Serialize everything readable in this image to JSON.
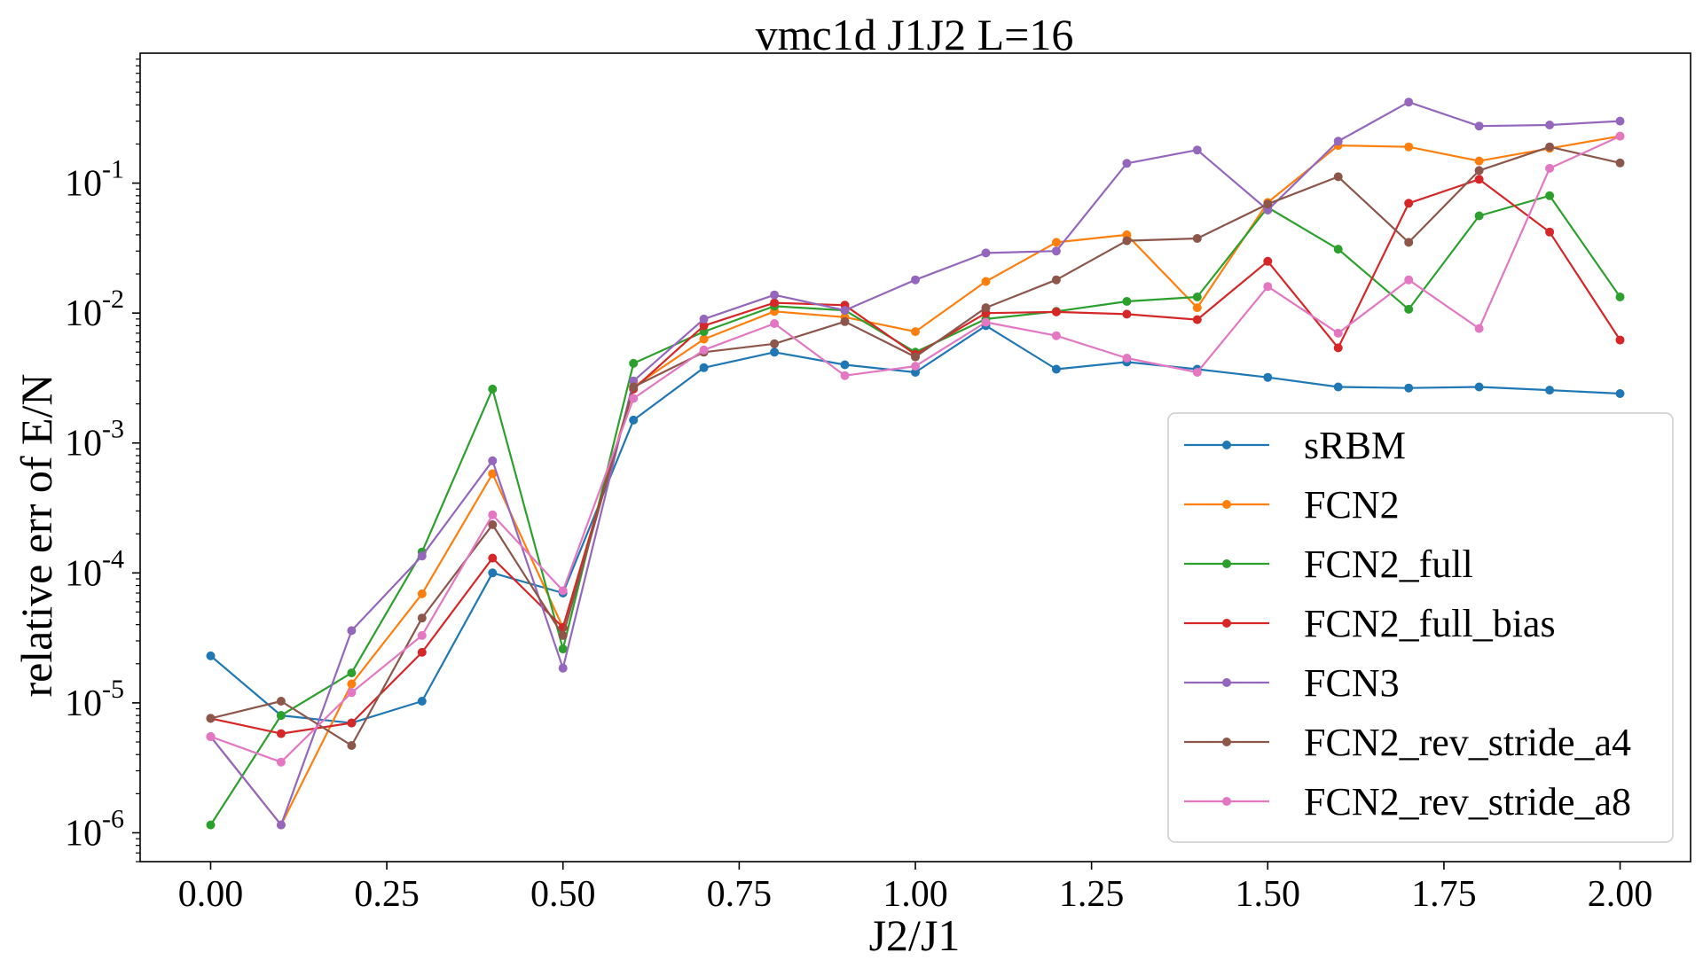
{
  "chart_data": {
    "type": "line",
    "title": "vmc1d J1J2 L=16",
    "xlabel": "J2/J1",
    "ylabel": "relative err of E/N",
    "xlim": [
      -0.1,
      2.1
    ],
    "ylim": [
      6e-07,
      1.0
    ],
    "yscale": "log",
    "grid": false,
    "legend_position": "lower-right",
    "x_ticks": [
      0.0,
      0.25,
      0.5,
      0.75,
      1.0,
      1.25,
      1.5,
      1.75,
      2.0
    ],
    "x_tick_labels": [
      "0.00",
      "0.25",
      "0.50",
      "0.75",
      "1.00",
      "1.25",
      "1.50",
      "1.75",
      "2.00"
    ],
    "y_ticks": [
      1e-06,
      1e-05,
      0.0001,
      0.001,
      0.01,
      0.1
    ],
    "y_tick_labels": [
      {
        "base": "10",
        "exp": "-6"
      },
      {
        "base": "10",
        "exp": "-5"
      },
      {
        "base": "10",
        "exp": "-4"
      },
      {
        "base": "10",
        "exp": "-3"
      },
      {
        "base": "10",
        "exp": "-2"
      },
      {
        "base": "10",
        "exp": "-1"
      }
    ],
    "x": [
      0.0,
      0.1,
      0.2,
      0.3,
      0.4,
      0.5,
      0.6,
      0.7,
      0.8,
      0.9,
      1.0,
      1.1,
      1.2,
      1.3,
      1.4,
      1.5,
      1.6,
      1.7,
      1.8,
      1.9,
      2.0
    ],
    "series": [
      {
        "name": "sRBM",
        "color": "#1f77b4",
        "values": [
          2.3e-05,
          8e-06,
          7e-06,
          1.03e-05,
          0.0001,
          7e-05,
          0.0015,
          0.0038,
          0.005,
          0.004,
          0.0035,
          0.008,
          0.0037,
          0.0042,
          0.0037,
          0.0032,
          0.0027,
          0.00265,
          0.0027,
          0.00255,
          0.0024
        ]
      },
      {
        "name": "FCN2",
        "color": "#ff7f0e",
        "values": [
          5.5e-06,
          1.15e-06,
          1.4e-05,
          6.9e-05,
          0.00058,
          3.8e-05,
          0.0027,
          0.0063,
          0.0103,
          0.0093,
          0.0072,
          0.0175,
          0.035,
          0.04,
          0.011,
          0.071,
          0.195,
          0.19,
          0.148,
          0.185,
          0.23
        ]
      },
      {
        "name": "FCN2_full",
        "color": "#2ca02c",
        "values": [
          1.15e-06,
          8e-06,
          1.7e-05,
          0.000145,
          0.0026,
          2.6e-05,
          0.0041,
          0.0072,
          0.0113,
          0.0105,
          0.005,
          0.009,
          0.0103,
          0.0123,
          0.0133,
          0.065,
          0.031,
          0.0107,
          0.056,
          0.08,
          0.0133
        ]
      },
      {
        "name": "FCN2_full_bias",
        "color": "#d62728",
        "values": [
          7.6e-06,
          5.8e-06,
          7e-06,
          2.45e-05,
          0.00013,
          3.8e-05,
          0.0026,
          0.008,
          0.012,
          0.0115,
          0.0048,
          0.01,
          0.0102,
          0.0098,
          0.0089,
          0.025,
          0.0054,
          0.07,
          0.107,
          0.042,
          0.0062
        ]
      },
      {
        "name": "FCN3",
        "color": "#9467bd",
        "values": [
          5.5e-06,
          1.15e-06,
          3.6e-05,
          0.000135,
          0.00073,
          1.85e-05,
          0.003,
          0.009,
          0.0138,
          0.0105,
          0.018,
          0.029,
          0.03,
          0.142,
          0.18,
          0.062,
          0.21,
          0.42,
          0.275,
          0.28,
          0.3
        ]
      },
      {
        "name": "FCN2_rev_stride_a4",
        "color": "#8c564b",
        "values": [
          7.6e-06,
          1.03e-05,
          4.7e-06,
          4.5e-05,
          0.000235,
          3.3e-05,
          0.0027,
          0.005,
          0.0058,
          0.0086,
          0.0046,
          0.011,
          0.018,
          0.036,
          0.0375,
          0.069,
          0.112,
          0.035,
          0.125,
          0.19,
          0.143
        ]
      },
      {
        "name": "FCN2_rev_stride_a8",
        "color": "#e377c2",
        "values": [
          5.5e-06,
          3.5e-06,
          1.2e-05,
          3.3e-05,
          0.00028,
          7.3e-05,
          0.0022,
          0.0052,
          0.0083,
          0.0033,
          0.0039,
          0.0085,
          0.0067,
          0.0045,
          0.0035,
          0.016,
          0.007,
          0.018,
          0.0076,
          0.13,
          0.23
        ]
      }
    ]
  }
}
